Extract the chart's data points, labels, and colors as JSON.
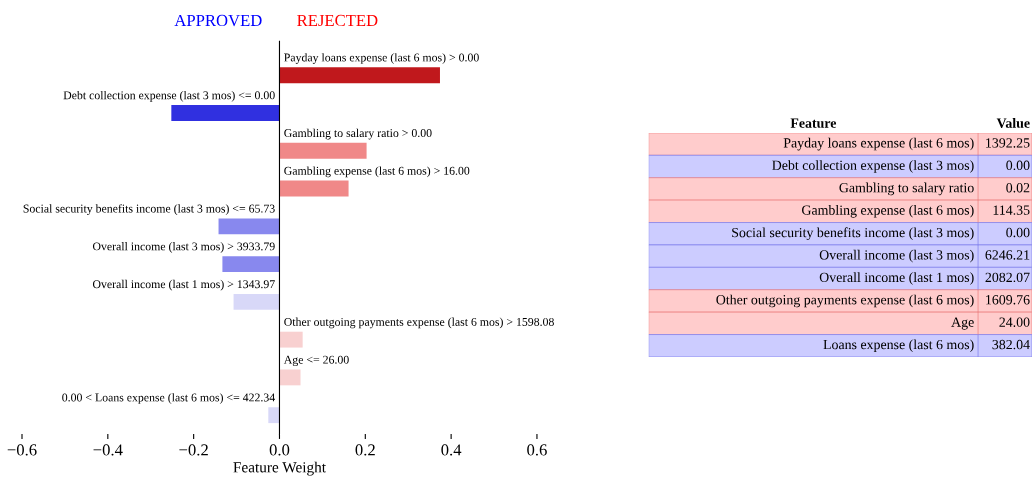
{
  "chart_data": [
    {
      "type": "bar",
      "orientation": "horizontal",
      "xlabel": "Feature Weight",
      "categories": [
        "Payday loans expense (last 6 mos) > 0.00",
        "Debt collection expense (last 3 mos) <= 0.00",
        "Gambling to salary ratio > 0.00",
        "Gambling expense (last 6 mos) > 16.00",
        "Social security benefits income (last 3 mos) <= 65.73",
        "Overall income (last 3 mos) > 3933.79",
        "Overall income (last 1 mos) > 1343.97",
        "Other outgoing payments expense (last 6 mos) > 1598.08",
        "Age <= 26.00",
        "0.00 < Loans expense (last 6 mos) <= 422.34"
      ],
      "values": [
        0.374,
        -0.252,
        0.203,
        0.161,
        -0.142,
        -0.133,
        -0.107,
        0.054,
        0.049,
        -0.026
      ],
      "colors": [
        "#c0181c",
        "#3030e0",
        "#f08888",
        "#f08888",
        "#8888ee",
        "#8888ee",
        "#d8d8f8",
        "#f8d0d0",
        "#f8d0d0",
        "#d8d8f8"
      ],
      "xlim": [
        -0.6,
        0.6
      ],
      "xticks": [
        -0.6,
        -0.4,
        -0.2,
        {
          "value": 0,
          "label": "0.0"
        },
        0.2,
        0.4,
        0.6
      ],
      "annotations": [
        "APPROVED",
        "REJECTED"
      ],
      "grid": false
    },
    {
      "type": "other",
      "annotations": [
        "Feature",
        "Value"
      ],
      "categories": [
        "Payday loans expense (last 6 mos)",
        "Debt collection expense (last 3 mos)",
        "Gambling to salary ratio",
        "Gambling expense (last 6 mos)",
        "Social security benefits income (last 3 mos)",
        "Overall income (last 3 mos)",
        "Overall income (last 1 mos)",
        "Other outgoing payments expense (last 6 mos)",
        "Age",
        "Loans expense (last 6 mos)"
      ],
      "value_labels": [
        "1392.25",
        "0.00",
        "0.02",
        "114.35",
        "0.00",
        "6246.21",
        "2082.07",
        "1609.76",
        "24.00",
        "382.04"
      ],
      "colors": [
        "#ffcccc",
        "#ccccff",
        "#ffcccc",
        "#ffcccc",
        "#ccccff",
        "#ccccff",
        "#ccccff",
        "#ffcccc",
        "#ffcccc",
        "#ccccff"
      ]
    }
  ]
}
